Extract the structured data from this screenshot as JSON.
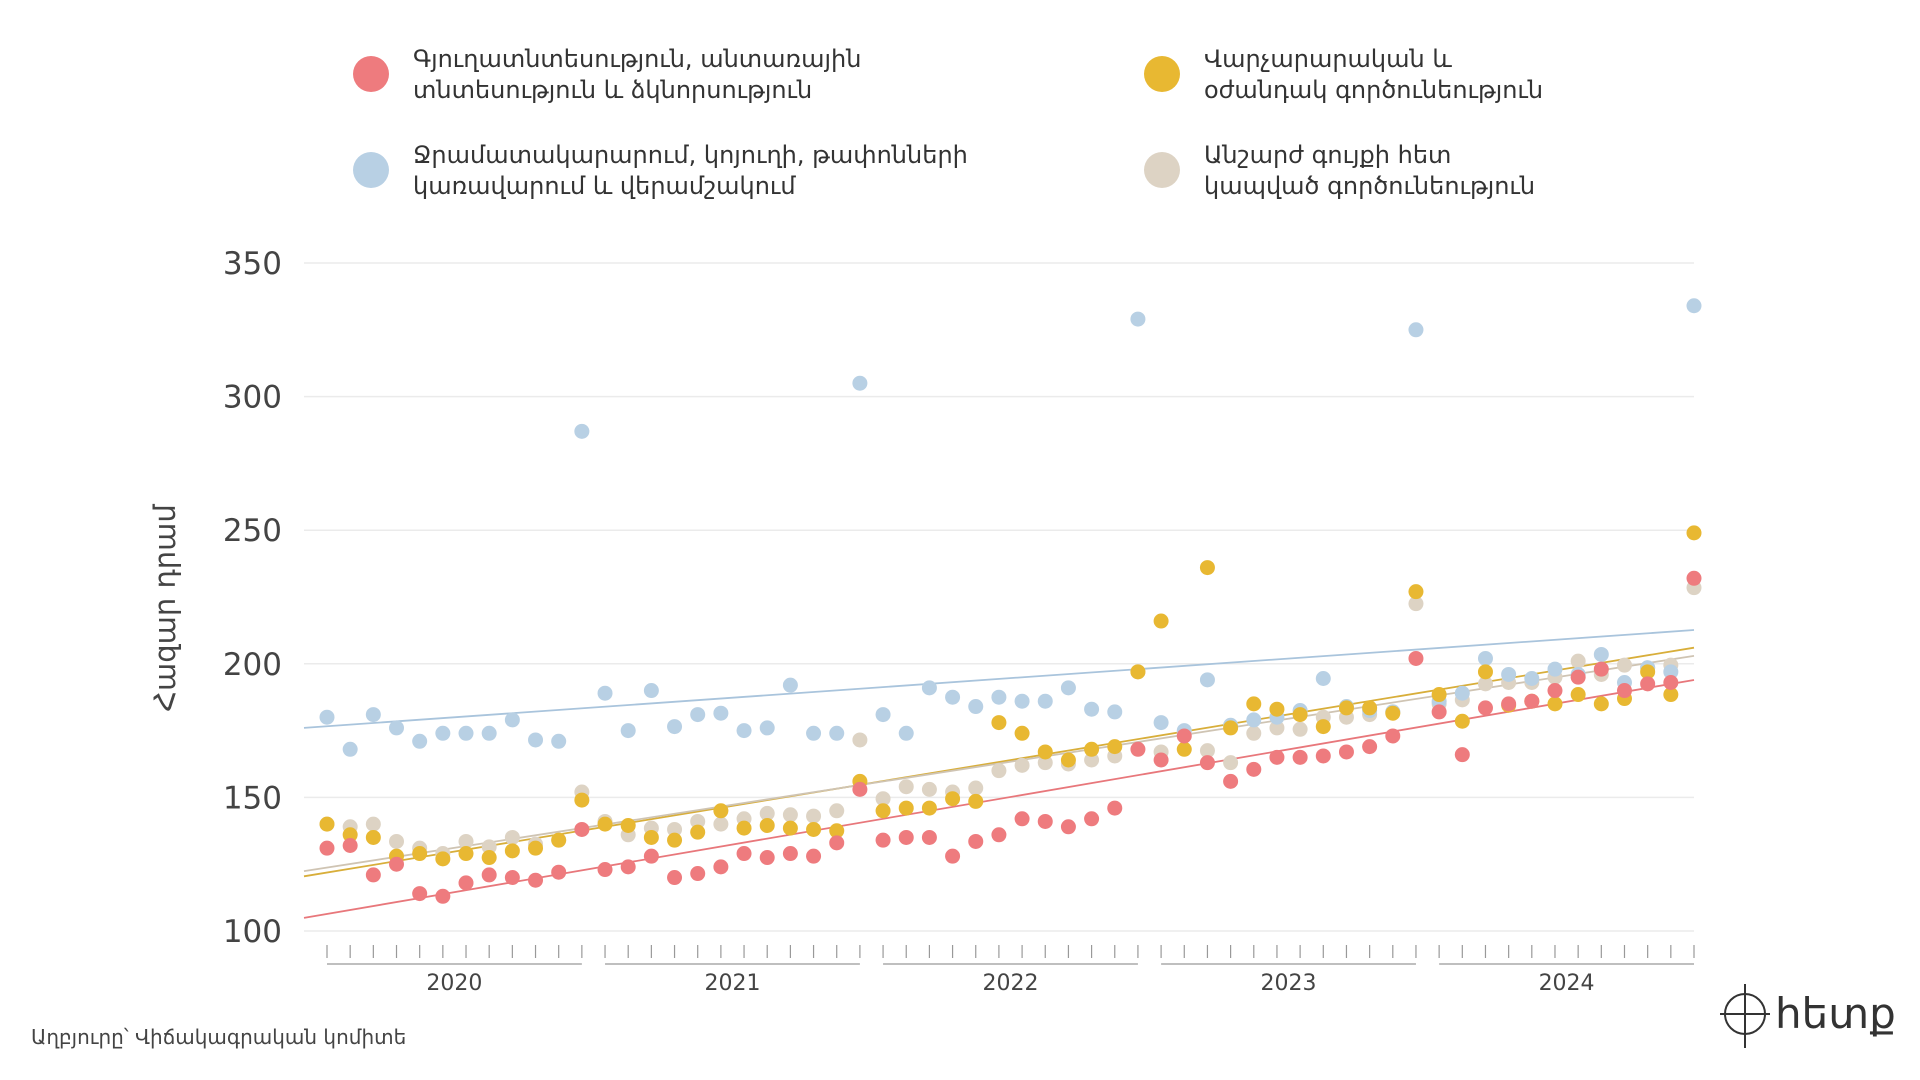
{
  "chart_data": {
    "type": "scatter",
    "y_label": "Հազար դրամ",
    "source": "Աղբյուրը՝ Վիճակագրական կոմիտե",
    "logo": "հետք",
    "categories": [
      null,
      null,
      null,
      null,
      null,
      null,
      null,
      null,
      null,
      null,
      null,
      null,
      null,
      null,
      null,
      null,
      null,
      null,
      null,
      null,
      null,
      null,
      null,
      null,
      null,
      null,
      null,
      null,
      null,
      null,
      null,
      null,
      null,
      null,
      null,
      null,
      null,
      null,
      null,
      null,
      null,
      null,
      null,
      null,
      null,
      null,
      null,
      null,
      null,
      null,
      null,
      null,
      null,
      null,
      null,
      null,
      null,
      null,
      null,
      null
    ],
    "x_groups": [
      "2020",
      "2021",
      "2022",
      "2023",
      "2024"
    ],
    "ylim": [
      100,
      350
    ],
    "yticks": [
      100,
      150,
      200,
      250,
      300,
      350
    ],
    "grid": true,
    "trendline": true,
    "series": [
      {
        "name": "Գյուղատնտեսություն, անտառային\nտնտեսություն և ձկնորսություն",
        "color": "#ee7b7e",
        "line_color": "#e8777b",
        "values": [
          131,
          132,
          121,
          125,
          114,
          113,
          118,
          121,
          120,
          119,
          122,
          138,
          123,
          124,
          128,
          120,
          121.5,
          124,
          129,
          127.5,
          129,
          128,
          133,
          153,
          134,
          135,
          135,
          128,
          133.5,
          136,
          142,
          141,
          139,
          142,
          146,
          168,
          164,
          173,
          163,
          156,
          160.5,
          165,
          165,
          165.5,
          167,
          169,
          173,
          202,
          182,
          166,
          183.5,
          185,
          186,
          190,
          195,
          198,
          190,
          192.5,
          193,
          232
        ]
      },
      {
        "name": "Վարչարարական և\nօժանդակ գործունեություն",
        "color": "#e8b832",
        "line_color": "#d8ae3a",
        "values": [
          140,
          136,
          135,
          128,
          129,
          127,
          129,
          127.5,
          130,
          131,
          134,
          149,
          140,
          139.5,
          135,
          134,
          137,
          145,
          138.5,
          139.5,
          138.5,
          138,
          137.5,
          156,
          145,
          146,
          146,
          149.5,
          148.5,
          178,
          174,
          167,
          164,
          168,
          169,
          197,
          216,
          168,
          236,
          176,
          185,
          183,
          181,
          176.5,
          183.5,
          183.5,
          181.5,
          227,
          188.5,
          178.5,
          197,
          184.5,
          186,
          185,
          188.5,
          185,
          187,
          197,
          188.5,
          249
        ]
      },
      {
        "name": "Ջրամատակարարում, կոյուղի, թափոնների\nկառավարում և վերամշակում",
        "color": "#b8d0e4",
        "line_color": "#a9c4dc",
        "values": [
          180,
          168,
          181,
          176,
          171,
          174,
          174,
          174,
          179,
          171.5,
          171,
          287,
          189,
          175,
          190,
          176.5,
          181,
          181.5,
          175,
          176,
          192,
          174,
          174,
          305,
          181,
          174,
          191,
          187.5,
          184,
          187.5,
          186,
          186,
          191,
          183,
          182,
          329,
          178,
          175,
          194,
          177,
          179,
          180,
          182.5,
          194.5,
          184,
          182.5,
          182,
          325,
          186,
          189,
          202,
          196,
          194.5,
          198,
          196,
          203.5,
          193,
          198.5,
          197,
          334
        ]
      },
      {
        "name": "Անշարժ գույքի հետ\nկապված գործունեություն",
        "color": "#ddd3c4",
        "line_color": "#cfc4b3",
        "values": [
          140,
          139,
          140,
          133.5,
          131,
          129,
          133.5,
          131.5,
          135,
          132.5,
          134,
          152,
          141,
          136,
          138.5,
          138,
          141,
          140,
          142,
          144,
          143.5,
          143,
          145,
          171.5,
          149.5,
          154,
          153,
          152,
          153.5,
          160,
          162,
          163,
          162.5,
          164,
          165.5,
          197,
          167,
          174,
          167.5,
          163,
          174,
          176,
          175.5,
          180,
          180,
          181,
          182,
          222.5,
          185,
          186.5,
          192.5,
          193,
          193,
          195,
          201,
          196,
          199.5,
          198.5,
          199.5,
          228.5
        ]
      }
    ]
  }
}
